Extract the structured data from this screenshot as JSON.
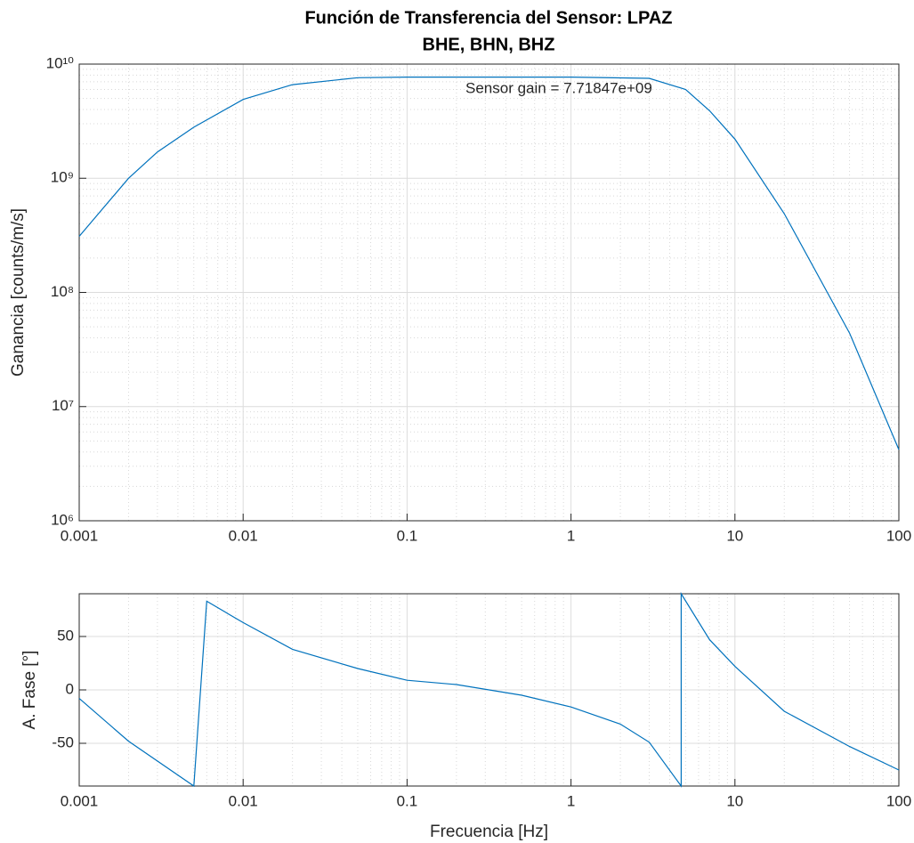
{
  "chart_data": [
    {
      "type": "line",
      "title": "Función de Transferencia del Sensor: LPAZ",
      "subtitle": "BHE, BHN, BHZ",
      "ylabel": "Ganancia [counts/m/s]",
      "annotation": "Sensor gain = 7.71847e+09",
      "x": [
        0.001,
        0.002,
        0.003,
        0.005,
        0.01,
        0.02,
        0.05,
        0.1,
        1,
        3,
        5,
        7,
        10,
        20,
        50,
        100
      ],
      "values": [
        310000000,
        1000000000,
        1700000000,
        2800000000,
        4900000000,
        6600000000,
        7600000000,
        7700000000,
        7700000000,
        7500000000,
        6000000000,
        3900000000,
        2200000000,
        490000000,
        44000000,
        4200000
      ],
      "color": "#0072bd",
      "xscale": "log",
      "yscale": "log",
      "xlim": [
        0.001,
        100
      ],
      "ylim": [
        1000000,
        10000000000
      ],
      "xticks": [
        0.001,
        0.01,
        0.1,
        1,
        10,
        100
      ],
      "yticks": [
        {
          "value": 1000000,
          "label": "10⁶"
        },
        {
          "value": 10000000,
          "label": "10⁷"
        },
        {
          "value": 100000000,
          "label": "10⁸"
        },
        {
          "value": 1000000000,
          "label": "10⁹"
        },
        {
          "value": 10000000000,
          "label": "10¹⁰"
        }
      ],
      "grid": true
    },
    {
      "type": "line",
      "ylabel": "A. Fase [°]",
      "xlabel": "Frecuencia [Hz]",
      "x": [
        0.001,
        0.002,
        0.005,
        0.006,
        0.01,
        0.02,
        0.05,
        0.1,
        0.2,
        0.5,
        1,
        2,
        3,
        4.7,
        4.7,
        7,
        10,
        20,
        50,
        100
      ],
      "values": [
        -8,
        -48,
        -90,
        83,
        63,
        38,
        20,
        9,
        5,
        -5,
        -16,
        -32,
        -49,
        -90,
        90,
        47,
        22,
        -20,
        -53,
        -75
      ],
      "color": "#0072bd",
      "xscale": "log",
      "xlim": [
        0.001,
        100
      ],
      "ylim": [
        -90,
        90
      ],
      "xticks": [
        0.001,
        0.01,
        0.1,
        1,
        10,
        100
      ],
      "yticks": [
        -50,
        0,
        50
      ],
      "grid": true
    }
  ]
}
